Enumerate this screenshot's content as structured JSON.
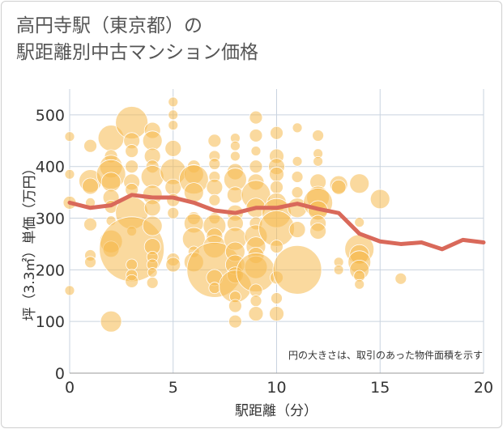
{
  "title_lines": [
    "高円寺駅（東京都）の",
    "駅距離別中古マンション価格"
  ],
  "chart_data": {
    "type": "scatter",
    "title": "高円寺駅（東京都）の駅距離別中古マンション価格",
    "xlabel": "駅距離（分）",
    "ylabel": "坪（3.3㎡）単価（万円）",
    "xlim": [
      0,
      20
    ],
    "ylim": [
      0,
      550
    ],
    "xticks": [
      0,
      5,
      10,
      15,
      20
    ],
    "yticks": [
      0,
      100,
      200,
      300,
      400,
      500
    ],
    "grid": true,
    "note": "円の大きさは、取引のあった物件面積を示す",
    "colors": {
      "bubble": "#f5b94f",
      "line": "#d9695a",
      "grid": "#c9d3df",
      "axis_text": "#333333"
    },
    "bubbles": [
      {
        "x": 0,
        "y": 458,
        "s": 6
      },
      {
        "x": 0,
        "y": 385,
        "s": 6
      },
      {
        "x": 0,
        "y": 330,
        "s": 8
      },
      {
        "x": 0,
        "y": 160,
        "s": 6
      },
      {
        "x": 1,
        "y": 440,
        "s": 8
      },
      {
        "x": 1,
        "y": 372,
        "s": 14
      },
      {
        "x": 1,
        "y": 362,
        "s": 10
      },
      {
        "x": 1,
        "y": 330,
        "s": 6
      },
      {
        "x": 1,
        "y": 288,
        "s": 8
      },
      {
        "x": 1,
        "y": 228,
        "s": 7
      },
      {
        "x": 1,
        "y": 215,
        "s": 7
      },
      {
        "x": 2,
        "y": 455,
        "s": 16
      },
      {
        "x": 2,
        "y": 420,
        "s": 8
      },
      {
        "x": 2,
        "y": 400,
        "s": 14
      },
      {
        "x": 2,
        "y": 385,
        "s": 18
      },
      {
        "x": 2,
        "y": 370,
        "s": 12
      },
      {
        "x": 2,
        "y": 340,
        "s": 10
      },
      {
        "x": 2,
        "y": 322,
        "s": 8
      },
      {
        "x": 2,
        "y": 295,
        "s": 6
      },
      {
        "x": 2,
        "y": 255,
        "s": 14
      },
      {
        "x": 2,
        "y": 240,
        "s": 10
      },
      {
        "x": 2,
        "y": 100,
        "s": 13
      },
      {
        "x": 3,
        "y": 485,
        "s": 20
      },
      {
        "x": 3,
        "y": 450,
        "s": 10
      },
      {
        "x": 3,
        "y": 430,
        "s": 8
      },
      {
        "x": 3,
        "y": 400,
        "s": 8
      },
      {
        "x": 3,
        "y": 370,
        "s": 10
      },
      {
        "x": 3,
        "y": 355,
        "s": 8
      },
      {
        "x": 3,
        "y": 310,
        "s": 20
      },
      {
        "x": 3,
        "y": 275,
        "s": 6
      },
      {
        "x": 3,
        "y": 240,
        "s": 40
      },
      {
        "x": 3,
        "y": 210,
        "s": 7
      },
      {
        "x": 3,
        "y": 190,
        "s": 7
      },
      {
        "x": 3,
        "y": 178,
        "s": 8
      },
      {
        "x": 4,
        "y": 470,
        "s": 10
      },
      {
        "x": 4,
        "y": 450,
        "s": 12
      },
      {
        "x": 4,
        "y": 420,
        "s": 10
      },
      {
        "x": 4,
        "y": 400,
        "s": 8
      },
      {
        "x": 4,
        "y": 380,
        "s": 14
      },
      {
        "x": 4,
        "y": 345,
        "s": 12
      },
      {
        "x": 4,
        "y": 320,
        "s": 10
      },
      {
        "x": 4,
        "y": 285,
        "s": 12
      },
      {
        "x": 4,
        "y": 245,
        "s": 10
      },
      {
        "x": 4,
        "y": 225,
        "s": 7
      },
      {
        "x": 4,
        "y": 210,
        "s": 7
      },
      {
        "x": 4,
        "y": 195,
        "s": 6
      },
      {
        "x": 4,
        "y": 175,
        "s": 7
      },
      {
        "x": 5,
        "y": 525,
        "s": 6
      },
      {
        "x": 5,
        "y": 500,
        "s": 6
      },
      {
        "x": 5,
        "y": 480,
        "s": 6
      },
      {
        "x": 5,
        "y": 435,
        "s": 10
      },
      {
        "x": 5,
        "y": 390,
        "s": 16
      },
      {
        "x": 5,
        "y": 360,
        "s": 10
      },
      {
        "x": 5,
        "y": 335,
        "s": 8
      },
      {
        "x": 5,
        "y": 310,
        "s": 7
      },
      {
        "x": 5,
        "y": 220,
        "s": 8
      },
      {
        "x": 5,
        "y": 210,
        "s": 9
      },
      {
        "x": 6,
        "y": 400,
        "s": 8
      },
      {
        "x": 6,
        "y": 385,
        "s": 12
      },
      {
        "x": 6,
        "y": 375,
        "s": 18
      },
      {
        "x": 6,
        "y": 350,
        "s": 12
      },
      {
        "x": 6,
        "y": 300,
        "s": 8
      },
      {
        "x": 6,
        "y": 290,
        "s": 12
      },
      {
        "x": 6,
        "y": 260,
        "s": 14
      },
      {
        "x": 6,
        "y": 235,
        "s": 7
      },
      {
        "x": 6,
        "y": 215,
        "s": 12
      },
      {
        "x": 7,
        "y": 450,
        "s": 8
      },
      {
        "x": 7,
        "y": 420,
        "s": 7
      },
      {
        "x": 7,
        "y": 405,
        "s": 7
      },
      {
        "x": 7,
        "y": 380,
        "s": 7
      },
      {
        "x": 7,
        "y": 360,
        "s": 10
      },
      {
        "x": 7,
        "y": 335,
        "s": 7
      },
      {
        "x": 7,
        "y": 300,
        "s": 7
      },
      {
        "x": 7,
        "y": 285,
        "s": 14
      },
      {
        "x": 7,
        "y": 265,
        "s": 10
      },
      {
        "x": 7,
        "y": 245,
        "s": 14
      },
      {
        "x": 7,
        "y": 200,
        "s": 34
      },
      {
        "x": 7,
        "y": 185,
        "s": 10
      },
      {
        "x": 7,
        "y": 165,
        "s": 7
      },
      {
        "x": 8,
        "y": 455,
        "s": 6
      },
      {
        "x": 8,
        "y": 440,
        "s": 6
      },
      {
        "x": 8,
        "y": 420,
        "s": 6
      },
      {
        "x": 8,
        "y": 390,
        "s": 10
      },
      {
        "x": 8,
        "y": 375,
        "s": 14
      },
      {
        "x": 8,
        "y": 345,
        "s": 10
      },
      {
        "x": 8,
        "y": 310,
        "s": 10
      },
      {
        "x": 8,
        "y": 290,
        "s": 10
      },
      {
        "x": 8,
        "y": 260,
        "s": 14
      },
      {
        "x": 8,
        "y": 235,
        "s": 12
      },
      {
        "x": 8,
        "y": 210,
        "s": 12
      },
      {
        "x": 8,
        "y": 190,
        "s": 10
      },
      {
        "x": 8,
        "y": 168,
        "s": 20
      },
      {
        "x": 8,
        "y": 148,
        "s": 7
      },
      {
        "x": 8,
        "y": 130,
        "s": 8
      },
      {
        "x": 8,
        "y": 100,
        "s": 8
      },
      {
        "x": 9,
        "y": 495,
        "s": 8
      },
      {
        "x": 9,
        "y": 460,
        "s": 8
      },
      {
        "x": 9,
        "y": 430,
        "s": 6
      },
      {
        "x": 9,
        "y": 400,
        "s": 8
      },
      {
        "x": 9,
        "y": 370,
        "s": 10
      },
      {
        "x": 9,
        "y": 345,
        "s": 18
      },
      {
        "x": 9,
        "y": 320,
        "s": 12
      },
      {
        "x": 9,
        "y": 290,
        "s": 8
      },
      {
        "x": 9,
        "y": 265,
        "s": 14
      },
      {
        "x": 9,
        "y": 245,
        "s": 12
      },
      {
        "x": 9,
        "y": 228,
        "s": 10
      },
      {
        "x": 9,
        "y": 205,
        "s": 14
      },
      {
        "x": 9,
        "y": 195,
        "s": 24
      },
      {
        "x": 9,
        "y": 160,
        "s": 8
      },
      {
        "x": 9,
        "y": 140,
        "s": 7
      },
      {
        "x": 9,
        "y": 115,
        "s": 9
      },
      {
        "x": 10,
        "y": 465,
        "s": 8
      },
      {
        "x": 10,
        "y": 420,
        "s": 9
      },
      {
        "x": 10,
        "y": 400,
        "s": 10
      },
      {
        "x": 10,
        "y": 385,
        "s": 9
      },
      {
        "x": 10,
        "y": 360,
        "s": 8
      },
      {
        "x": 10,
        "y": 330,
        "s": 12
      },
      {
        "x": 10,
        "y": 310,
        "s": 18
      },
      {
        "x": 10,
        "y": 280,
        "s": 22
      },
      {
        "x": 10,
        "y": 245,
        "s": 8
      },
      {
        "x": 10,
        "y": 185,
        "s": 8
      },
      {
        "x": 10,
        "y": 145,
        "s": 7
      },
      {
        "x": 10,
        "y": 115,
        "s": 9
      },
      {
        "x": 11,
        "y": 475,
        "s": 6
      },
      {
        "x": 11,
        "y": 410,
        "s": 6
      },
      {
        "x": 11,
        "y": 380,
        "s": 7
      },
      {
        "x": 11,
        "y": 350,
        "s": 7
      },
      {
        "x": 11,
        "y": 320,
        "s": 12
      },
      {
        "x": 11,
        "y": 278,
        "s": 10
      },
      {
        "x": 11,
        "y": 200,
        "s": 30
      },
      {
        "x": 12,
        "y": 460,
        "s": 7
      },
      {
        "x": 12,
        "y": 425,
        "s": 6
      },
      {
        "x": 12,
        "y": 410,
        "s": 6
      },
      {
        "x": 12,
        "y": 370,
        "s": 10
      },
      {
        "x": 12,
        "y": 340,
        "s": 14
      },
      {
        "x": 12,
        "y": 330,
        "s": 18
      },
      {
        "x": 12,
        "y": 315,
        "s": 12
      },
      {
        "x": 12,
        "y": 290,
        "s": 10
      },
      {
        "x": 12,
        "y": 275,
        "s": 10
      },
      {
        "x": 13,
        "y": 365,
        "s": 11
      },
      {
        "x": 13,
        "y": 360,
        "s": 9
      },
      {
        "x": 13,
        "y": 215,
        "s": 6
      },
      {
        "x": 13,
        "y": 200,
        "s": 6
      },
      {
        "x": 14,
        "y": 367,
        "s": 12
      },
      {
        "x": 14,
        "y": 292,
        "s": 6
      },
      {
        "x": 14,
        "y": 240,
        "s": 18
      },
      {
        "x": 14,
        "y": 230,
        "s": 12
      },
      {
        "x": 14,
        "y": 215,
        "s": 14
      },
      {
        "x": 14,
        "y": 200,
        "s": 12
      },
      {
        "x": 14,
        "y": 188,
        "s": 7
      },
      {
        "x": 14,
        "y": 172,
        "s": 6
      },
      {
        "x": 15,
        "y": 337,
        "s": 12
      },
      {
        "x": 16,
        "y": 183,
        "s": 7
      }
    ],
    "series": [
      {
        "x": [
          0,
          1,
          2,
          3,
          4,
          5,
          6,
          7,
          8,
          9,
          10,
          11,
          12,
          13,
          14,
          15,
          16,
          17,
          18,
          19,
          20
        ],
        "y": [
          330,
          320,
          325,
          345,
          340,
          340,
          330,
          315,
          310,
          320,
          320,
          328,
          318,
          310,
          270,
          255,
          250,
          253,
          240,
          258,
          253
        ]
      }
    ]
  }
}
